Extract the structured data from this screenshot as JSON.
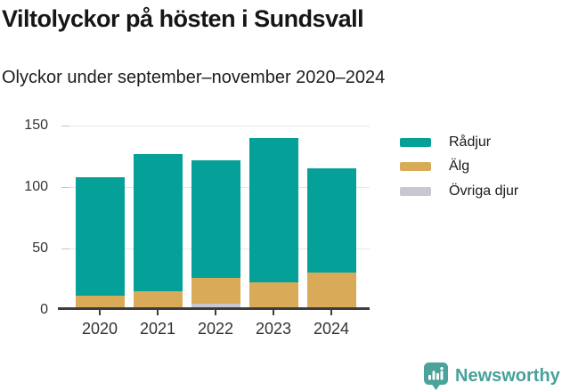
{
  "chart_data": {
    "type": "bar",
    "stacked": true,
    "title": "Viltolyckor på hösten i Sundsvall",
    "subtitle": "Olyckor under september–november 2020–2024",
    "categories": [
      "2020",
      "2021",
      "2022",
      "2023",
      "2024"
    ],
    "series": [
      {
        "name": "Rådjur",
        "color": "#05a098",
        "values": [
          97,
          112,
          96,
          118,
          85
        ]
      },
      {
        "name": "Älg",
        "color": "#d9ab58",
        "values": [
          9,
          13,
          21,
          20,
          28
        ]
      },
      {
        "name": "Övriga djur",
        "color": "#c9c8d2",
        "values": [
          2,
          2,
          5,
          2,
          2
        ]
      }
    ],
    "stack_totals": [
      108,
      127,
      122,
      140,
      115
    ],
    "xlabel": "",
    "ylabel": "",
    "ylim": [
      0,
      150
    ],
    "yticks": [
      0,
      50,
      100,
      150
    ],
    "grid": true,
    "legend_position": "right"
  },
  "footer": {
    "brand": "Newsworthy"
  },
  "colors": {
    "axis": "#3d3d3d",
    "grid": "#e7e7e7",
    "tick": "#c6c6c6",
    "axis_label": "#333333",
    "title_text": "#161616",
    "brand": "#47a19a",
    "logo": "#4ba39c"
  }
}
